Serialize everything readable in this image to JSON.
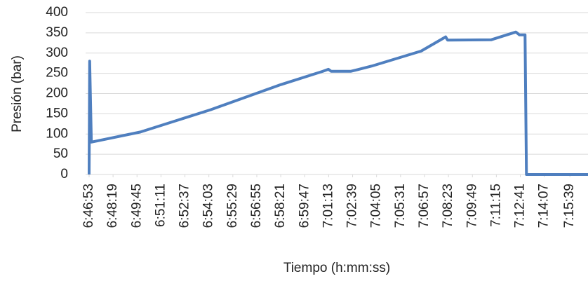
{
  "chart_data": {
    "type": "line",
    "xlabel": "Tiempo (h:mm:ss)",
    "ylabel": "Presión (bar)",
    "series": [
      {
        "name": "Presión",
        "color": "#4f7fbf",
        "x": [
          "6:46:53",
          "6:46:55",
          "6:47:01",
          "6:49:57",
          "6:54:09",
          "6:58:21",
          "7:00:52",
          "7:01:12",
          "7:01:22",
          "7:02:33",
          "7:03:48",
          "7:06:45",
          "7:08:13",
          "7:08:20",
          "7:10:57",
          "7:12:25",
          "7:12:38",
          "7:12:58",
          "7:13:03",
          "7:16:44"
        ],
        "values": [
          0,
          280,
          80,
          105,
          160,
          222,
          255,
          260,
          255,
          255,
          268,
          305,
          340,
          332,
          333,
          352,
          345,
          345,
          0,
          0
        ]
      }
    ],
    "xlim": [
      "6:46:53",
      "7:16:44"
    ],
    "xticks": [
      "6:46:53",
      "6:48:19",
      "6:49:45",
      "6:51:11",
      "6:52:37",
      "6:54:03",
      "6:55:29",
      "6:56:55",
      "6:58:21",
      "6:59:47",
      "7:01:13",
      "7:02:39",
      "7:04:05",
      "7:05:31",
      "7:06:57",
      "7:08:23",
      "7:09:49",
      "7:11:15",
      "7:12:41",
      "7:14:07",
      "7:15:39"
    ],
    "ylim": [
      0,
      400
    ],
    "yticks": [
      0,
      50,
      100,
      150,
      200,
      250,
      300,
      350,
      400
    ],
    "grid": true
  }
}
